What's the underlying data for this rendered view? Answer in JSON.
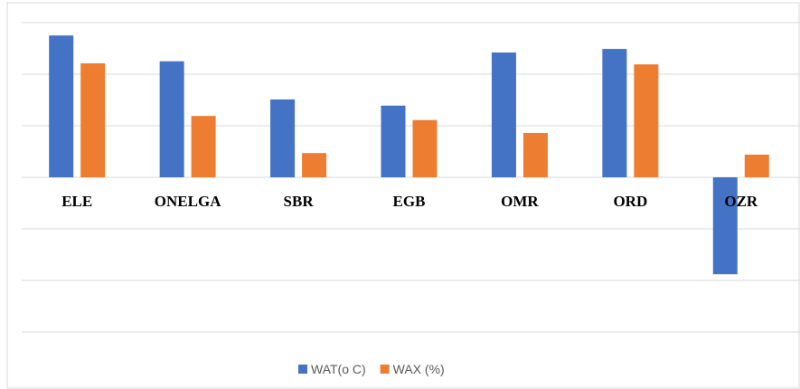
{
  "chart_data": {
    "type": "bar",
    "categories": [
      "ELE",
      "ONELGA",
      "SBR",
      "EGB",
      "OMR",
      "ORD",
      "OZR"
    ],
    "series": [
      {
        "name": "WAT(o C)",
        "color": "#4472c4",
        "values": [
          27.5,
          22.5,
          15.1,
          13.9,
          24.2,
          24.9,
          -18.8
        ]
      },
      {
        "name": "WAX (%)",
        "color": "#ed7d31",
        "values": [
          22.1,
          11.9,
          4.7,
          11.1,
          8.6,
          21.9,
          4.4
        ]
      }
    ],
    "ylim": [
      -30,
      30
    ],
    "yticks": [
      -30,
      -20,
      -10,
      0,
      10,
      20,
      30
    ],
    "grid": true,
    "legend": "bottom"
  }
}
